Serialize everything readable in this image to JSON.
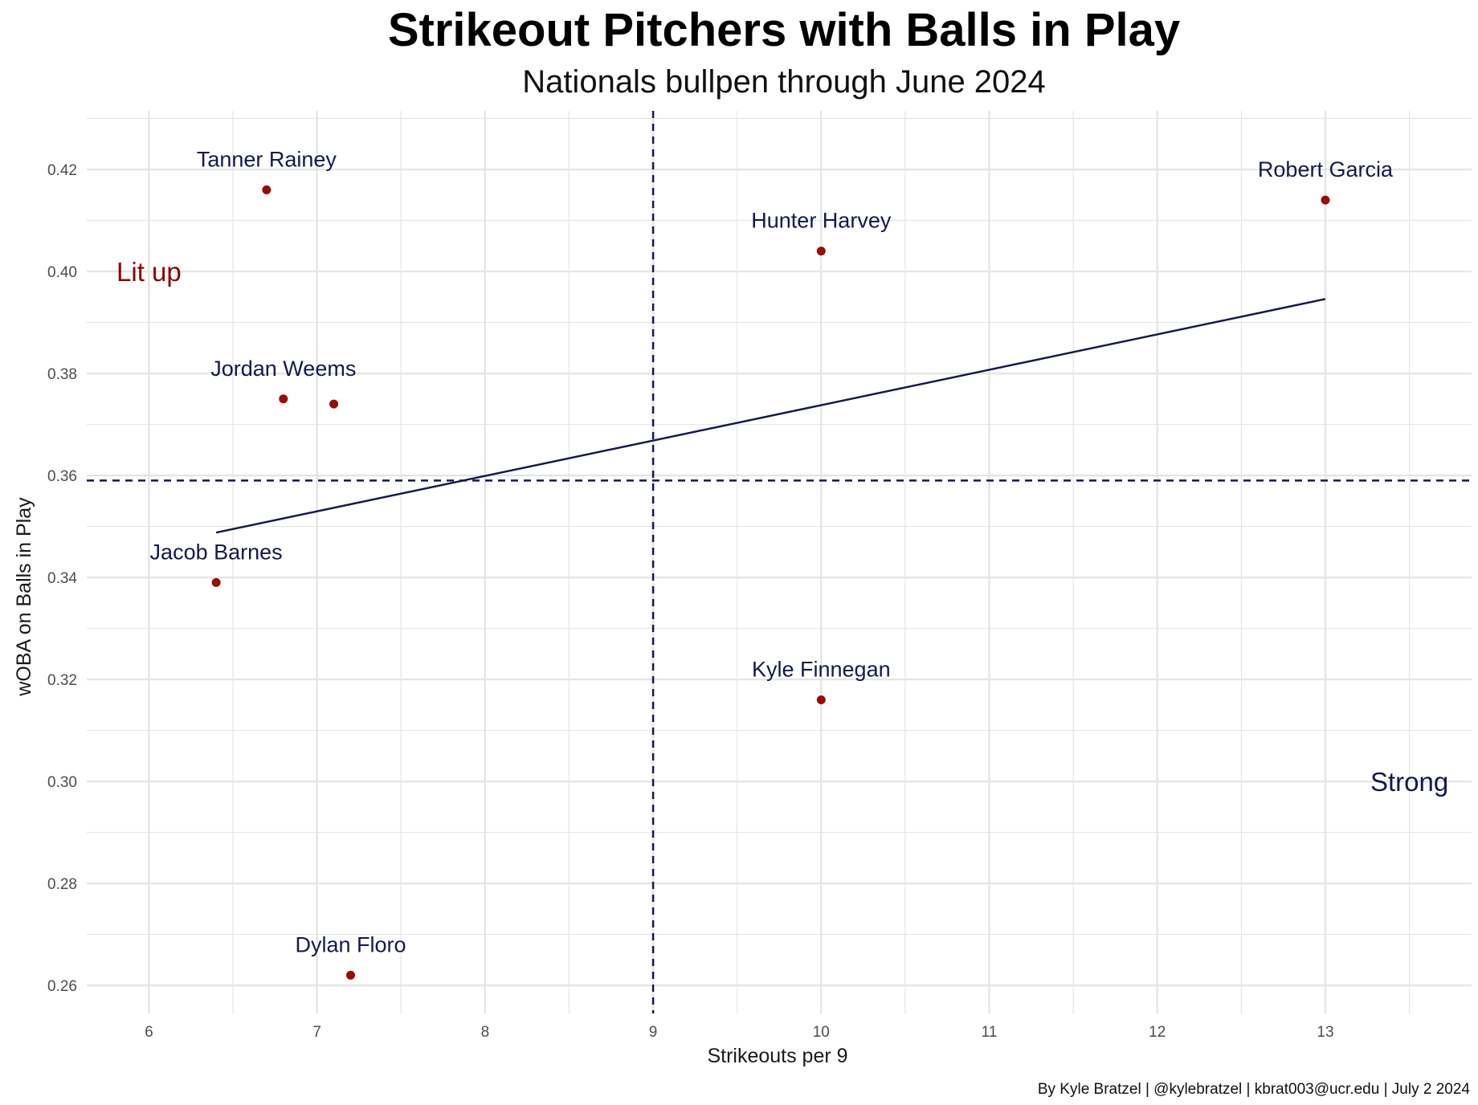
{
  "chart_data": {
    "type": "scatter",
    "title": "Strikeout Pitchers with Balls in Play",
    "subtitle": "Nationals bullpen through June 2024",
    "xlabel": "Strikeouts per 9",
    "ylabel": "wOBA on Balls in Play",
    "caption": "By Kyle Bratzel | @kylebratzel | kbrat003@ucr.edu | July 2 2024",
    "xlim": [
      5.63,
      13.87
    ],
    "ylim": [
      0.2545,
      0.4315
    ],
    "x_ticks": [
      "6",
      "7",
      "8",
      "9",
      "10",
      "11",
      "12",
      "13"
    ],
    "y_ticks": [
      "0.26",
      "0.28",
      "0.30",
      "0.32",
      "0.34",
      "0.36",
      "0.38",
      "0.40",
      "0.42"
    ],
    "points": [
      {
        "label": "Tanner Rainey",
        "x": 6.7,
        "y": 0.416
      },
      {
        "label": "Robert Garcia",
        "x": 13.0,
        "y": 0.414
      },
      {
        "label": "Hunter Harvey",
        "x": 10.0,
        "y": 0.404
      },
      {
        "label": "Jordan Weems",
        "x": 6.8,
        "y": 0.375
      },
      {
        "label": "",
        "x": 7.1,
        "y": 0.374
      },
      {
        "label": "Jacob Barnes",
        "x": 6.4,
        "y": 0.339
      },
      {
        "label": "Kyle Finnegan",
        "x": 10.0,
        "y": 0.316
      },
      {
        "label": "Dylan Floro",
        "x": 7.2,
        "y": 0.262
      }
    ],
    "reference_lines": {
      "x": 9.0,
      "y": 0.359
    },
    "trend_line": {
      "x": [
        6.4,
        13.0
      ],
      "y": [
        0.3488,
        0.3946
      ]
    },
    "annotations": [
      {
        "text": "Lit up",
        "x": 6.0,
        "y": 0.4,
        "color": "#8b0000"
      },
      {
        "text": "Strong",
        "x": 13.5,
        "y": 0.3,
        "color": "#141a4a"
      }
    ],
    "colors": {
      "point": "#9b0a0a",
      "line": "#141a4a",
      "grid": "#e5e5e5",
      "label": "#141a4a"
    }
  }
}
